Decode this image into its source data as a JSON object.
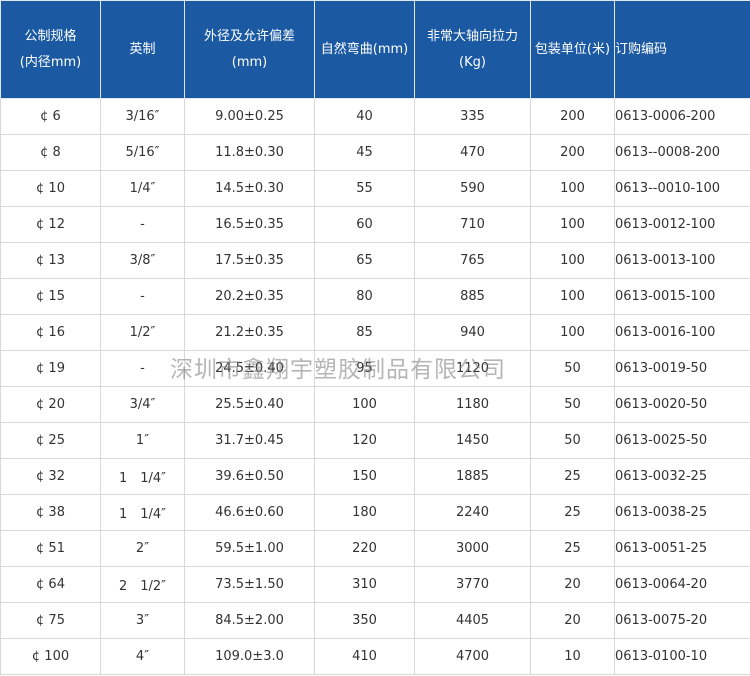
{
  "table": {
    "header": [
      [
        "公制规格",
        "(内径mm)"
      ],
      [
        "英制"
      ],
      [
        "外径及允许偏差",
        "(mm)"
      ],
      [
        "自然弯曲(mm)"
      ],
      [
        "非常大轴向拉力",
        "(Kg)"
      ],
      [
        "包装单位(米)"
      ],
      [
        "订购编码"
      ]
    ],
    "rows": [
      [
        "¢ 6",
        "3/16″",
        "9.00±0.25",
        "40",
        "335",
        "200",
        "0613-0006-200"
      ],
      [
        "¢ 8",
        "5/16″",
        "11.8±0.30",
        "45",
        "470",
        "200",
        "0613--0008-200"
      ],
      [
        "¢ 10",
        "1/4″",
        "14.5±0.30",
        "55",
        "590",
        "100",
        "0613--0010-100"
      ],
      [
        "¢ 12",
        "-",
        "16.5±0.35",
        "60",
        "710",
        "100",
        "0613-0012-100"
      ],
      [
        "¢ 13",
        "3/8″",
        "17.5±0.35",
        "65",
        "765",
        "100",
        "0613-0013-100"
      ],
      [
        "¢ 15",
        "-",
        "20.2±0.35",
        "80",
        "885",
        "100",
        "0613-0015-100"
      ],
      [
        "¢ 16",
        "1/2″",
        "21.2±0.35",
        "85",
        "940",
        "100",
        "0613-0016-100"
      ],
      [
        "¢ 19",
        "-",
        "24.5±0.40",
        "95",
        "1120",
        "50",
        "0613-0019-50"
      ],
      [
        "¢ 20",
        "3/4″",
        "25.5±0.40",
        "100",
        "1180",
        "50",
        "0613-0020-50"
      ],
      [
        "¢ 25",
        "1″",
        "31.7±0.45",
        "120",
        "1450",
        "50",
        "0613-0025-50"
      ],
      [
        "¢ 32",
        "1　1/4″",
        "39.6±0.50",
        "150",
        "1885",
        "25",
        "0613-0032-25"
      ],
      [
        "¢ 38",
        "1　1/4″",
        "46.6±0.60",
        "180",
        "2240",
        "25",
        "0613-0038-25"
      ],
      [
        "¢ 51",
        "2″",
        "59.5±1.00",
        "220",
        "3000",
        "25",
        "0613-0051-25"
      ],
      [
        "¢ 64",
        "2　1/2″",
        "73.5±1.50",
        "310",
        "3770",
        "20",
        "0613-0064-20"
      ],
      [
        "¢ 75",
        "3″",
        "84.5±2.00",
        "350",
        "4405",
        "20",
        "0613-0075-20"
      ],
      [
        "¢ 100",
        "4″",
        "109.0±3.0",
        "410",
        "4700",
        "10",
        "0613-0100-10"
      ]
    ]
  },
  "watermark": "深圳市鑫翔宇塑胶制品有限公司"
}
